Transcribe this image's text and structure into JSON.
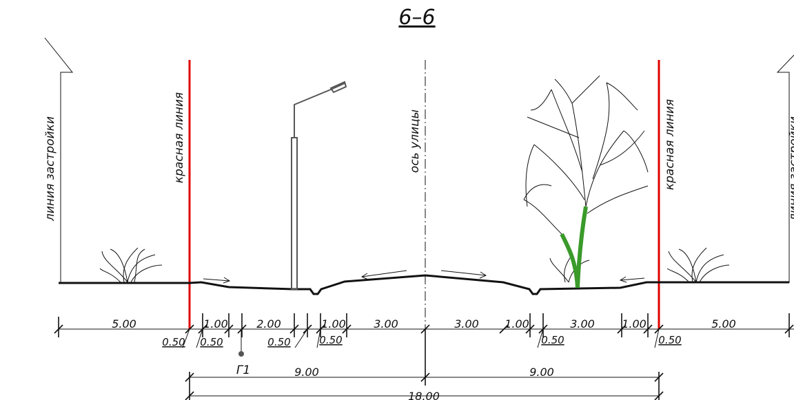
{
  "title": "6–6",
  "labels": {
    "building_line_left": "линия застройки",
    "red_line_left": "красная линия",
    "axis": "ось улицы",
    "red_line_right": "красная линия",
    "building_line_right": "линия застройки"
  },
  "dimensions": {
    "main": [
      "5.00",
      "1.00",
      "2.00",
      "1.00",
      "3.00",
      "3.00",
      "1.00",
      "3.00",
      "1.00",
      "5.00"
    ],
    "small": [
      "0.50",
      "0.50",
      "0.50",
      "0.50",
      "0.50",
      "0.50"
    ],
    "halves": [
      "9.00",
      "9.00"
    ],
    "total": "18.00"
  },
  "utility": "Г1"
}
